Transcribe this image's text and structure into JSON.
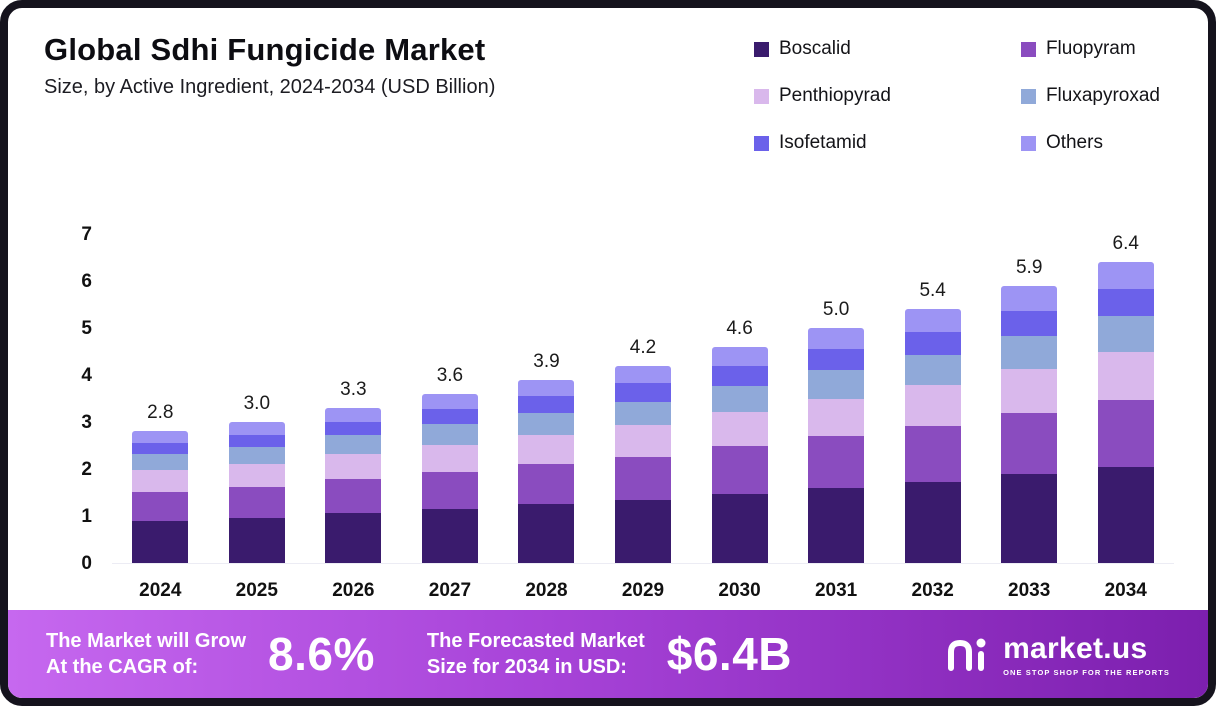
{
  "header": {
    "title": "Global Sdhi Fungicide Market",
    "subtitle": "Size, by Active Ingredient, 2024-2034 (USD Billion)"
  },
  "legend": [
    {
      "label": "Boscalid",
      "color": "#3a1b6d"
    },
    {
      "label": "Fluopyram",
      "color": "#8a4cbf"
    },
    {
      "label": "Penthiopyrad",
      "color": "#d9b8ec"
    },
    {
      "label": "Fluxapyroxad",
      "color": "#90a9d9"
    },
    {
      "label": "Isofetamid",
      "color": "#6b61ea"
    },
    {
      "label": "Others",
      "color": "#9d94f4"
    }
  ],
  "chart_data": {
    "type": "bar",
    "stacked": true,
    "title": "Global Sdhi Fungicide Market Size, by Active Ingredient, 2024-2034 (USD Billion)",
    "categories": [
      "2024",
      "2025",
      "2026",
      "2027",
      "2028",
      "2029",
      "2030",
      "2031",
      "2032",
      "2033",
      "2034"
    ],
    "totals": [
      2.8,
      3.0,
      3.3,
      3.6,
      3.9,
      4.2,
      4.6,
      5.0,
      5.4,
      5.9,
      6.4
    ],
    "series": [
      {
        "name": "Boscalid",
        "values": [
          0.9,
          0.96,
          1.06,
          1.15,
          1.25,
          1.34,
          1.47,
          1.6,
          1.73,
          1.89,
          2.05
        ]
      },
      {
        "name": "Fluopyram",
        "values": [
          0.62,
          0.66,
          0.73,
          0.79,
          0.86,
          0.92,
          1.01,
          1.1,
          1.19,
          1.3,
          1.41
        ]
      },
      {
        "name": "Penthiopyrad",
        "values": [
          0.45,
          0.48,
          0.53,
          0.58,
          0.62,
          0.67,
          0.74,
          0.8,
          0.86,
          0.94,
          1.02
        ]
      },
      {
        "name": "Fluxapyroxad",
        "values": [
          0.34,
          0.36,
          0.4,
          0.43,
          0.47,
          0.5,
          0.55,
          0.6,
          0.65,
          0.71,
          0.77
        ]
      },
      {
        "name": "Isofetamid",
        "values": [
          0.25,
          0.27,
          0.29,
          0.33,
          0.35,
          0.39,
          0.42,
          0.45,
          0.49,
          0.53,
          0.58
        ]
      },
      {
        "name": "Others",
        "values": [
          0.24,
          0.27,
          0.29,
          0.32,
          0.35,
          0.38,
          0.41,
          0.45,
          0.48,
          0.53,
          0.57
        ]
      }
    ],
    "xlabel": "",
    "ylabel": "",
    "ylim": [
      0,
      7
    ],
    "yticks": [
      0,
      1,
      2,
      3,
      4,
      5,
      6,
      7
    ],
    "grid": false,
    "legend_position": "top-right"
  },
  "footer": {
    "cagr_label_line1": "The Market will Grow",
    "cagr_label_line2": "At the CAGR of:",
    "cagr_value": "8.6%",
    "forecast_label_line1": "The Forecasted Market",
    "forecast_label_line2": "Size for 2034 in USD:",
    "forecast_value": "$6.4B",
    "brand_name": "market.us",
    "brand_tagline": "ONE STOP SHOP FOR THE REPORTS"
  }
}
